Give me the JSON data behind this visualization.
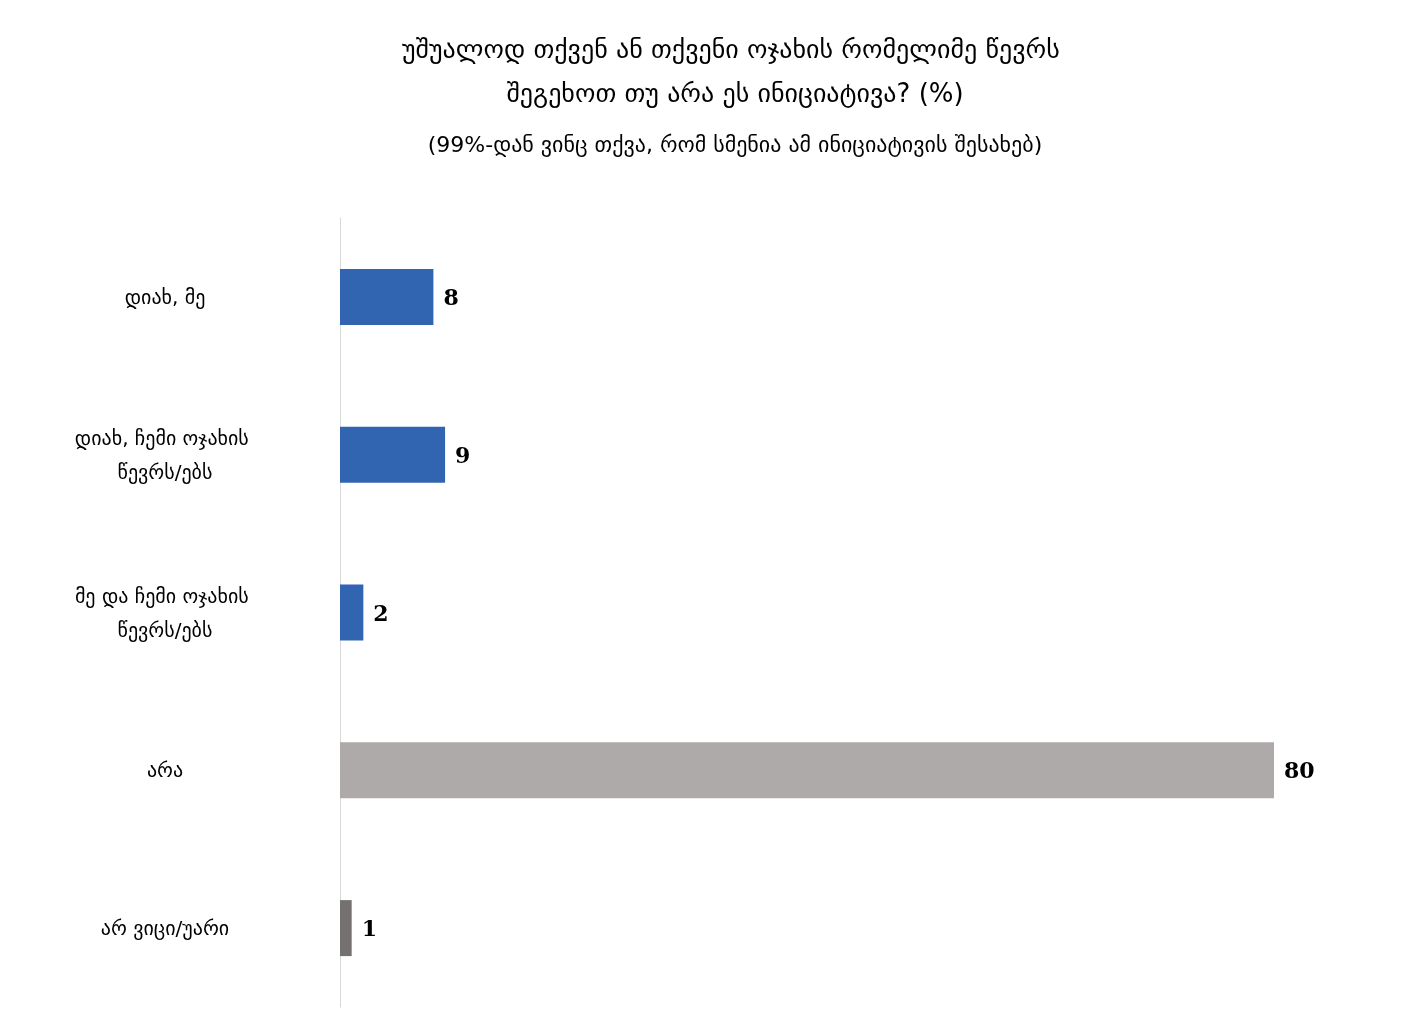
{
  "chart_data": {
    "type": "bar",
    "orientation": "horizontal",
    "title": "უშუალოდ თქვენ ან თქვენი ოჯახის რომელიმე წევრს შეგეხოთ თუ არა ეს ინიციატივა? (%)",
    "subtitle": "(99%-დან ვინც თქვა, რომ სმენია ამ ინიციატივის შესახებ)",
    "categories": [
      "დიახ, მე",
      "დიახ, ჩემი ოჯახის წევრს/ებს",
      "მე და ჩემი ოჯახის წევრს/ებს",
      "არა",
      "არ ვიცი/უარი"
    ],
    "values": [
      8,
      9,
      2,
      80,
      1
    ],
    "colors": [
      "#3164b1",
      "#3164b1",
      "#3164b1",
      "#aeaaaa",
      "#757171"
    ],
    "data_labels": true,
    "grid": false
  }
}
